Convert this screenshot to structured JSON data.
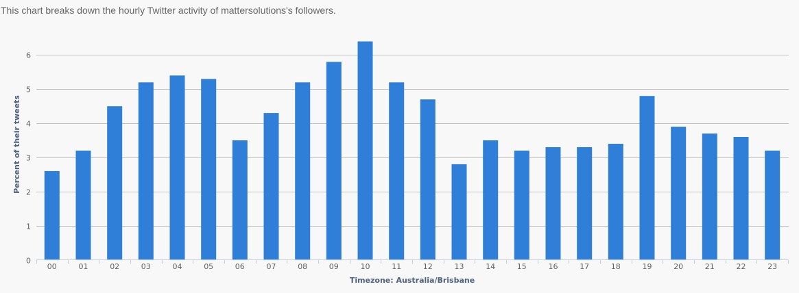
{
  "description": "This chart breaks down the hourly Twitter activity of mattersolutions's followers.",
  "colors": {
    "bar": "#2f7ed8",
    "grid": "#c0c0c0",
    "axis": "#c0d0e0",
    "axis_title": "#4d6180",
    "tick_label": "#606060",
    "background": "#f8f8f8"
  },
  "chart_data": {
    "type": "bar",
    "title": "",
    "xlabel": "Timezone: Australia/Brisbane",
    "ylabel": "Percent of their tweets",
    "categories": [
      "00",
      "01",
      "02",
      "03",
      "04",
      "05",
      "06",
      "07",
      "08",
      "09",
      "10",
      "11",
      "12",
      "13",
      "14",
      "15",
      "16",
      "17",
      "18",
      "19",
      "20",
      "21",
      "22",
      "23"
    ],
    "values": [
      2.6,
      3.2,
      4.5,
      5.2,
      5.4,
      5.3,
      3.5,
      4.3,
      5.2,
      5.8,
      6.4,
      5.2,
      4.7,
      2.8,
      3.5,
      3.2,
      3.3,
      3.3,
      3.4,
      4.8,
      3.9,
      3.7,
      3.6,
      3.2
    ],
    "yticks": [
      0,
      1,
      2,
      3,
      4,
      5,
      6
    ],
    "ylim": [
      0,
      6.5
    ],
    "grid": true,
    "legend": null
  }
}
